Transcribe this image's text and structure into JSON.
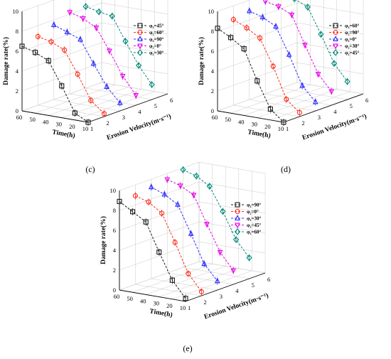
{
  "colors": {
    "series": [
      "#1a1a1a",
      "#ff2a1a",
      "#2a2aff",
      "#e600e6",
      "#00897b"
    ],
    "grid": "#c8c8c8",
    "axis": "#000000"
  },
  "chart_data": [
    {
      "type": "line",
      "view": "3d",
      "panel_label": "(c)",
      "xlabel": "Time(h)",
      "ylabel": "Erosion Velocity(m·s⁻¹)",
      "zlabel": "Damage rate(%)",
      "x_ticks": [
        "60",
        "50",
        "40",
        "30",
        "20",
        "10"
      ],
      "y_ticks": [
        "1",
        "2",
        "3",
        "4",
        "5",
        "6"
      ],
      "z_ticks": [
        "0",
        "2",
        "4",
        "6",
        "8",
        "10"
      ],
      "series": [
        {
          "name": "φ₂=45°",
          "marker": "square",
          "y": 1,
          "points": [
            [
              60,
              6.5
            ],
            [
              50,
              6.1
            ],
            [
              40,
              5.5
            ],
            [
              30,
              3.2
            ],
            [
              20,
              0.7
            ],
            [
              10,
              0.0
            ]
          ]
        },
        {
          "name": "φ₂=60°",
          "marker": "circle",
          "y": 2,
          "points": [
            [
              60,
              6.9
            ],
            [
              50,
              6.6
            ],
            [
              40,
              6.0
            ],
            [
              30,
              3.8
            ],
            [
              20,
              1.4
            ],
            [
              10,
              0.3
            ]
          ]
        },
        {
          "name": "φ₂=90°",
          "marker": "triangle",
          "y": 3,
          "points": [
            [
              60,
              7.5
            ],
            [
              50,
              7.0
            ],
            [
              40,
              6.5
            ],
            [
              30,
              4.3
            ],
            [
              20,
              2.2
            ],
            [
              10,
              0.8
            ]
          ]
        },
        {
          "name": "φ₂=0°",
          "marker": "inverted-triangle",
          "y": 4,
          "points": [
            [
              60,
              8.2
            ],
            [
              50,
              7.8
            ],
            [
              40,
              7.1
            ],
            [
              30,
              5.0
            ],
            [
              20,
              2.7
            ],
            [
              10,
              1.0
            ]
          ]
        },
        {
          "name": "φ₂=30°",
          "marker": "diamond",
          "y": 5,
          "points": [
            [
              60,
              8.2
            ],
            [
              50,
              7.9
            ],
            [
              40,
              7.7
            ],
            [
              30,
              5.4
            ],
            [
              20,
              3.2
            ],
            [
              10,
              1.5
            ]
          ]
        }
      ]
    },
    {
      "type": "line",
      "view": "3d",
      "panel_label": "(d)",
      "xlabel": "Time(h)",
      "ylabel": "Erosion Velocity(m·s⁻¹)",
      "zlabel": "Damage rate(%)",
      "x_ticks": [
        "60",
        "50",
        "40",
        "30",
        "20",
        "10"
      ],
      "y_ticks": [
        "1",
        "2",
        "3",
        "4",
        "5",
        "6"
      ],
      "z_ticks": [
        "0",
        "2",
        "4",
        "6",
        "8",
        "10"
      ],
      "series": [
        {
          "name": "φ₂=60°",
          "marker": "square",
          "y": 1,
          "points": [
            [
              60,
              8.3
            ],
            [
              50,
              7.6
            ],
            [
              40,
              6.7
            ],
            [
              30,
              3.7
            ],
            [
              20,
              1.1
            ],
            [
              10,
              0.0
            ]
          ]
        },
        {
          "name": "φ₂=90°",
          "marker": "circle",
          "y": 2,
          "points": [
            [
              60,
              8.6
            ],
            [
              50,
              8.0
            ],
            [
              40,
              7.2
            ],
            [
              30,
              4.6
            ],
            [
              20,
              1.5
            ],
            [
              10,
              0.4
            ]
          ]
        },
        {
          "name": "φ₂=0°",
          "marker": "triangle",
          "y": 3,
          "points": [
            [
              60,
              8.9
            ],
            [
              50,
              8.5
            ],
            [
              40,
              7.8
            ],
            [
              30,
              5.2
            ],
            [
              20,
              2.3
            ],
            [
              10,
              0.9
            ]
          ]
        },
        {
          "name": "φ₂=30°",
          "marker": "inverted-triangle",
          "y": 4,
          "points": [
            [
              60,
              9.3
            ],
            [
              50,
              9.0
            ],
            [
              40,
              8.4
            ],
            [
              30,
              5.6
            ],
            [
              20,
              2.9
            ],
            [
              10,
              1.4
            ]
          ]
        },
        {
          "name": "φ₂=45°",
          "marker": "diamond",
          "y": 5,
          "points": [
            [
              60,
              9.4
            ],
            [
              50,
              9.2
            ],
            [
              40,
              8.6
            ],
            [
              30,
              6.1
            ],
            [
              20,
              3.4
            ],
            [
              10,
              1.8
            ]
          ]
        }
      ]
    },
    {
      "type": "line",
      "view": "3d",
      "panel_label": "(e)",
      "xlabel": "Time(h)",
      "ylabel": "Erosion Velocity(m·s⁻¹)",
      "zlabel": "Damage rate(%)",
      "x_ticks": [
        "60",
        "50",
        "40",
        "30",
        "20",
        "10"
      ],
      "y_ticks": [
        "1",
        "2",
        "3",
        "4",
        "5",
        "6"
      ],
      "z_ticks": [
        "0",
        "2",
        "4",
        "6",
        "8",
        "10"
      ],
      "series": [
        {
          "name": "φ₂=90°",
          "marker": "square",
          "y": 1,
          "points": [
            [
              60,
              8.9
            ],
            [
              50,
              8.1
            ],
            [
              40,
              7.3
            ],
            [
              30,
              4.5
            ],
            [
              20,
              1.9
            ],
            [
              10,
              0.3
            ]
          ]
        },
        {
          "name": "φ₂=0°",
          "marker": "circle",
          "y": 2,
          "points": [
            [
              60,
              8.9
            ],
            [
              50,
              8.5
            ],
            [
              40,
              7.6
            ],
            [
              30,
              4.9
            ],
            [
              20,
              2.0
            ],
            [
              10,
              0.4
            ]
          ]
        },
        {
          "name": "φ₂=30°",
          "marker": "triangle",
          "y": 3,
          "points": [
            [
              60,
              9.2
            ],
            [
              50,
              8.7
            ],
            [
              40,
              7.9
            ],
            [
              30,
              5.2
            ],
            [
              20,
              2.4
            ],
            [
              10,
              0.9
            ]
          ]
        },
        {
          "name": "φ₂=45°",
          "marker": "inverted-triangle",
          "y": 4,
          "points": [
            [
              60,
              9.4
            ],
            [
              50,
              9.0
            ],
            [
              40,
              8.3
            ],
            [
              30,
              5.6
            ],
            [
              20,
              3.0
            ],
            [
              10,
              1.4
            ]
          ]
        },
        {
          "name": "φ₂=60°",
          "marker": "diamond",
          "y": 5,
          "points": [
            [
              60,
              9.8
            ],
            [
              50,
              9.4
            ],
            [
              40,
              8.6
            ],
            [
              30,
              6.3
            ],
            [
              20,
              3.7
            ],
            [
              10,
              2.1
            ]
          ]
        }
      ]
    }
  ]
}
